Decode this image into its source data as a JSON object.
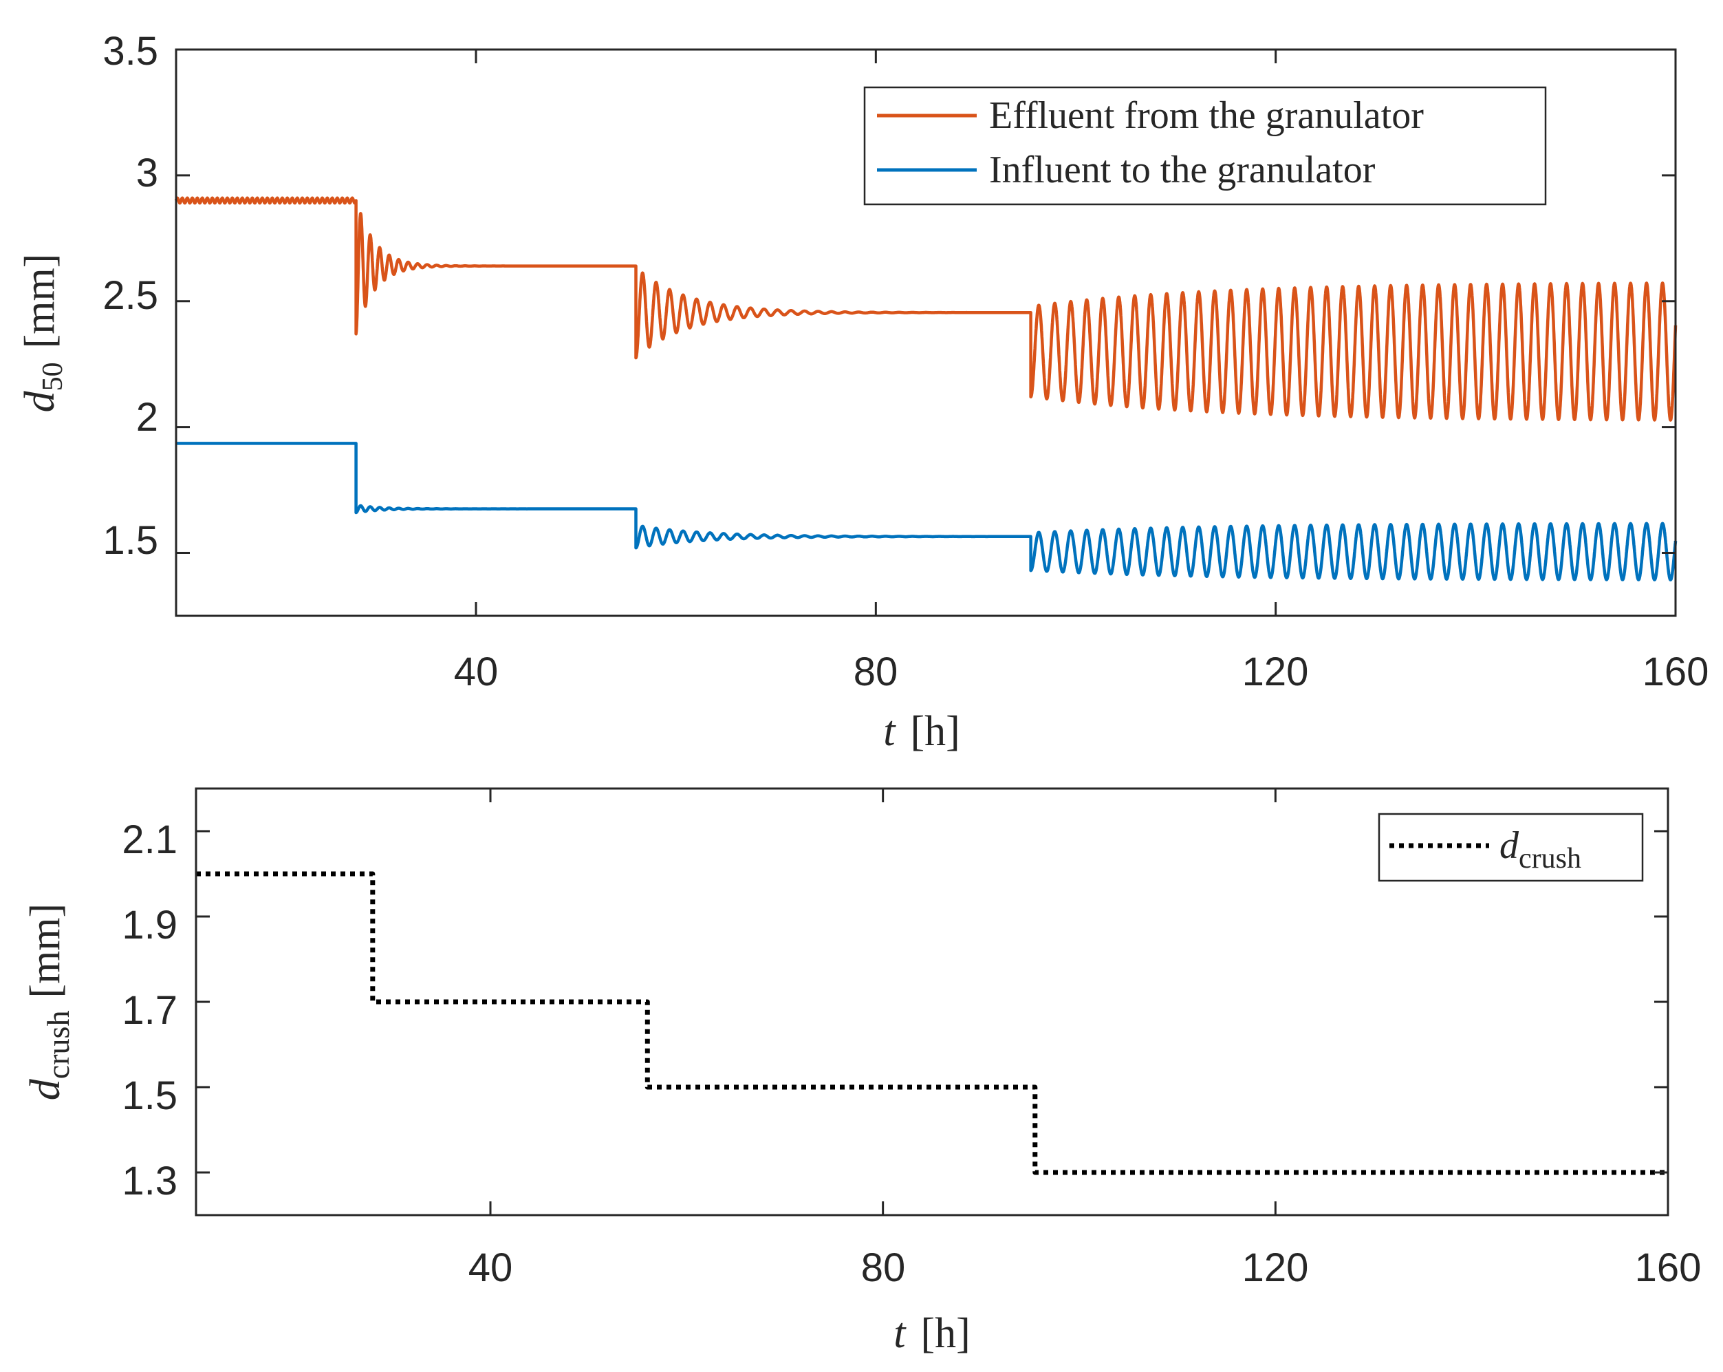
{
  "chart_data": [
    {
      "type": "line",
      "xlim": [
        10,
        160
      ],
      "ylim": [
        1.25,
        3.5
      ],
      "xticks": [
        40,
        80,
        120,
        160
      ],
      "yticks": [
        1.5,
        2,
        2.5,
        3,
        3.5
      ],
      "xtick_labels": [
        "40",
        "80",
        "120",
        "160"
      ],
      "ytick_labels": [
        "1.5",
        "2",
        "2.5",
        "3",
        "3.5"
      ],
      "xlabel": {
        "symbol": "t",
        "unit": "[h]"
      },
      "ylabel": {
        "symbol": "d",
        "sub": "50",
        "unit": "[mm]"
      },
      "legend_location": "top-right",
      "series": [
        {
          "name": "Effluent from the granulator",
          "color": "#D95319",
          "segments": [
            {
              "t_start": 10,
              "t_end": 28,
              "base": 2.9,
              "osc_init": 0.0,
              "period": 0.5,
              "decay": 0.0,
              "ripple": 0.01
            },
            {
              "t_start": 28,
              "t_end": 56,
              "base": 2.64,
              "osc_init": 0.27,
              "period": 0.95,
              "decay": 0.55
            },
            {
              "t_start": 56,
              "t_end": 95.5,
              "base": 2.455,
              "osc_init": 0.18,
              "period": 1.35,
              "decay": 0.2
            },
            {
              "t_start": 95.5,
              "t_end": 160,
              "base": 2.3,
              "osc_init": 0.18,
              "period": 1.6,
              "decay": 0.0,
              "growth": 0.095
            }
          ]
        },
        {
          "name": "Influent to the granulator",
          "color": "#0072BD",
          "segments": [
            {
              "t_start": 10,
              "t_end": 28,
              "base": 1.935,
              "osc_init": 0.0,
              "period": 0.5,
              "decay": 0.0
            },
            {
              "t_start": 28,
              "t_end": 56,
              "base": 1.675,
              "osc_init": 0.015,
              "period": 0.95,
              "decay": 0.4
            },
            {
              "t_start": 56,
              "t_end": 95.5,
              "base": 1.565,
              "osc_init": 0.045,
              "period": 1.35,
              "decay": 0.15
            },
            {
              "t_start": 95.5,
              "t_end": 160,
              "base": 1.505,
              "osc_init": 0.075,
              "period": 1.6,
              "decay": 0.0,
              "growth": 0.038
            }
          ]
        }
      ]
    },
    {
      "type": "line",
      "xlim": [
        10,
        160
      ],
      "ylim": [
        1.2,
        2.2
      ],
      "xticks": [
        40,
        80,
        120,
        160
      ],
      "yticks": [
        1.3,
        1.5,
        1.7,
        1.9,
        2.1
      ],
      "xtick_labels": [
        "40",
        "80",
        "120",
        "160"
      ],
      "ytick_labels": [
        "1.3",
        "1.5",
        "1.7",
        "1.9",
        "2.1"
      ],
      "xlabel": {
        "symbol": "t",
        "unit": "[h]"
      },
      "ylabel": {
        "symbol": "d",
        "sub": "crush",
        "unit": "[mm]"
      },
      "legend_location": "top-right",
      "series": [
        {
          "name": {
            "symbol": "d",
            "sub": "crush"
          },
          "color": "#000000",
          "style": "dotted",
          "x": [
            10,
            28,
            28,
            56,
            56,
            95.5,
            95.5,
            160
          ],
          "y": [
            2.0,
            2.0,
            1.7,
            1.7,
            1.5,
            1.5,
            1.3,
            1.3
          ]
        }
      ]
    }
  ]
}
